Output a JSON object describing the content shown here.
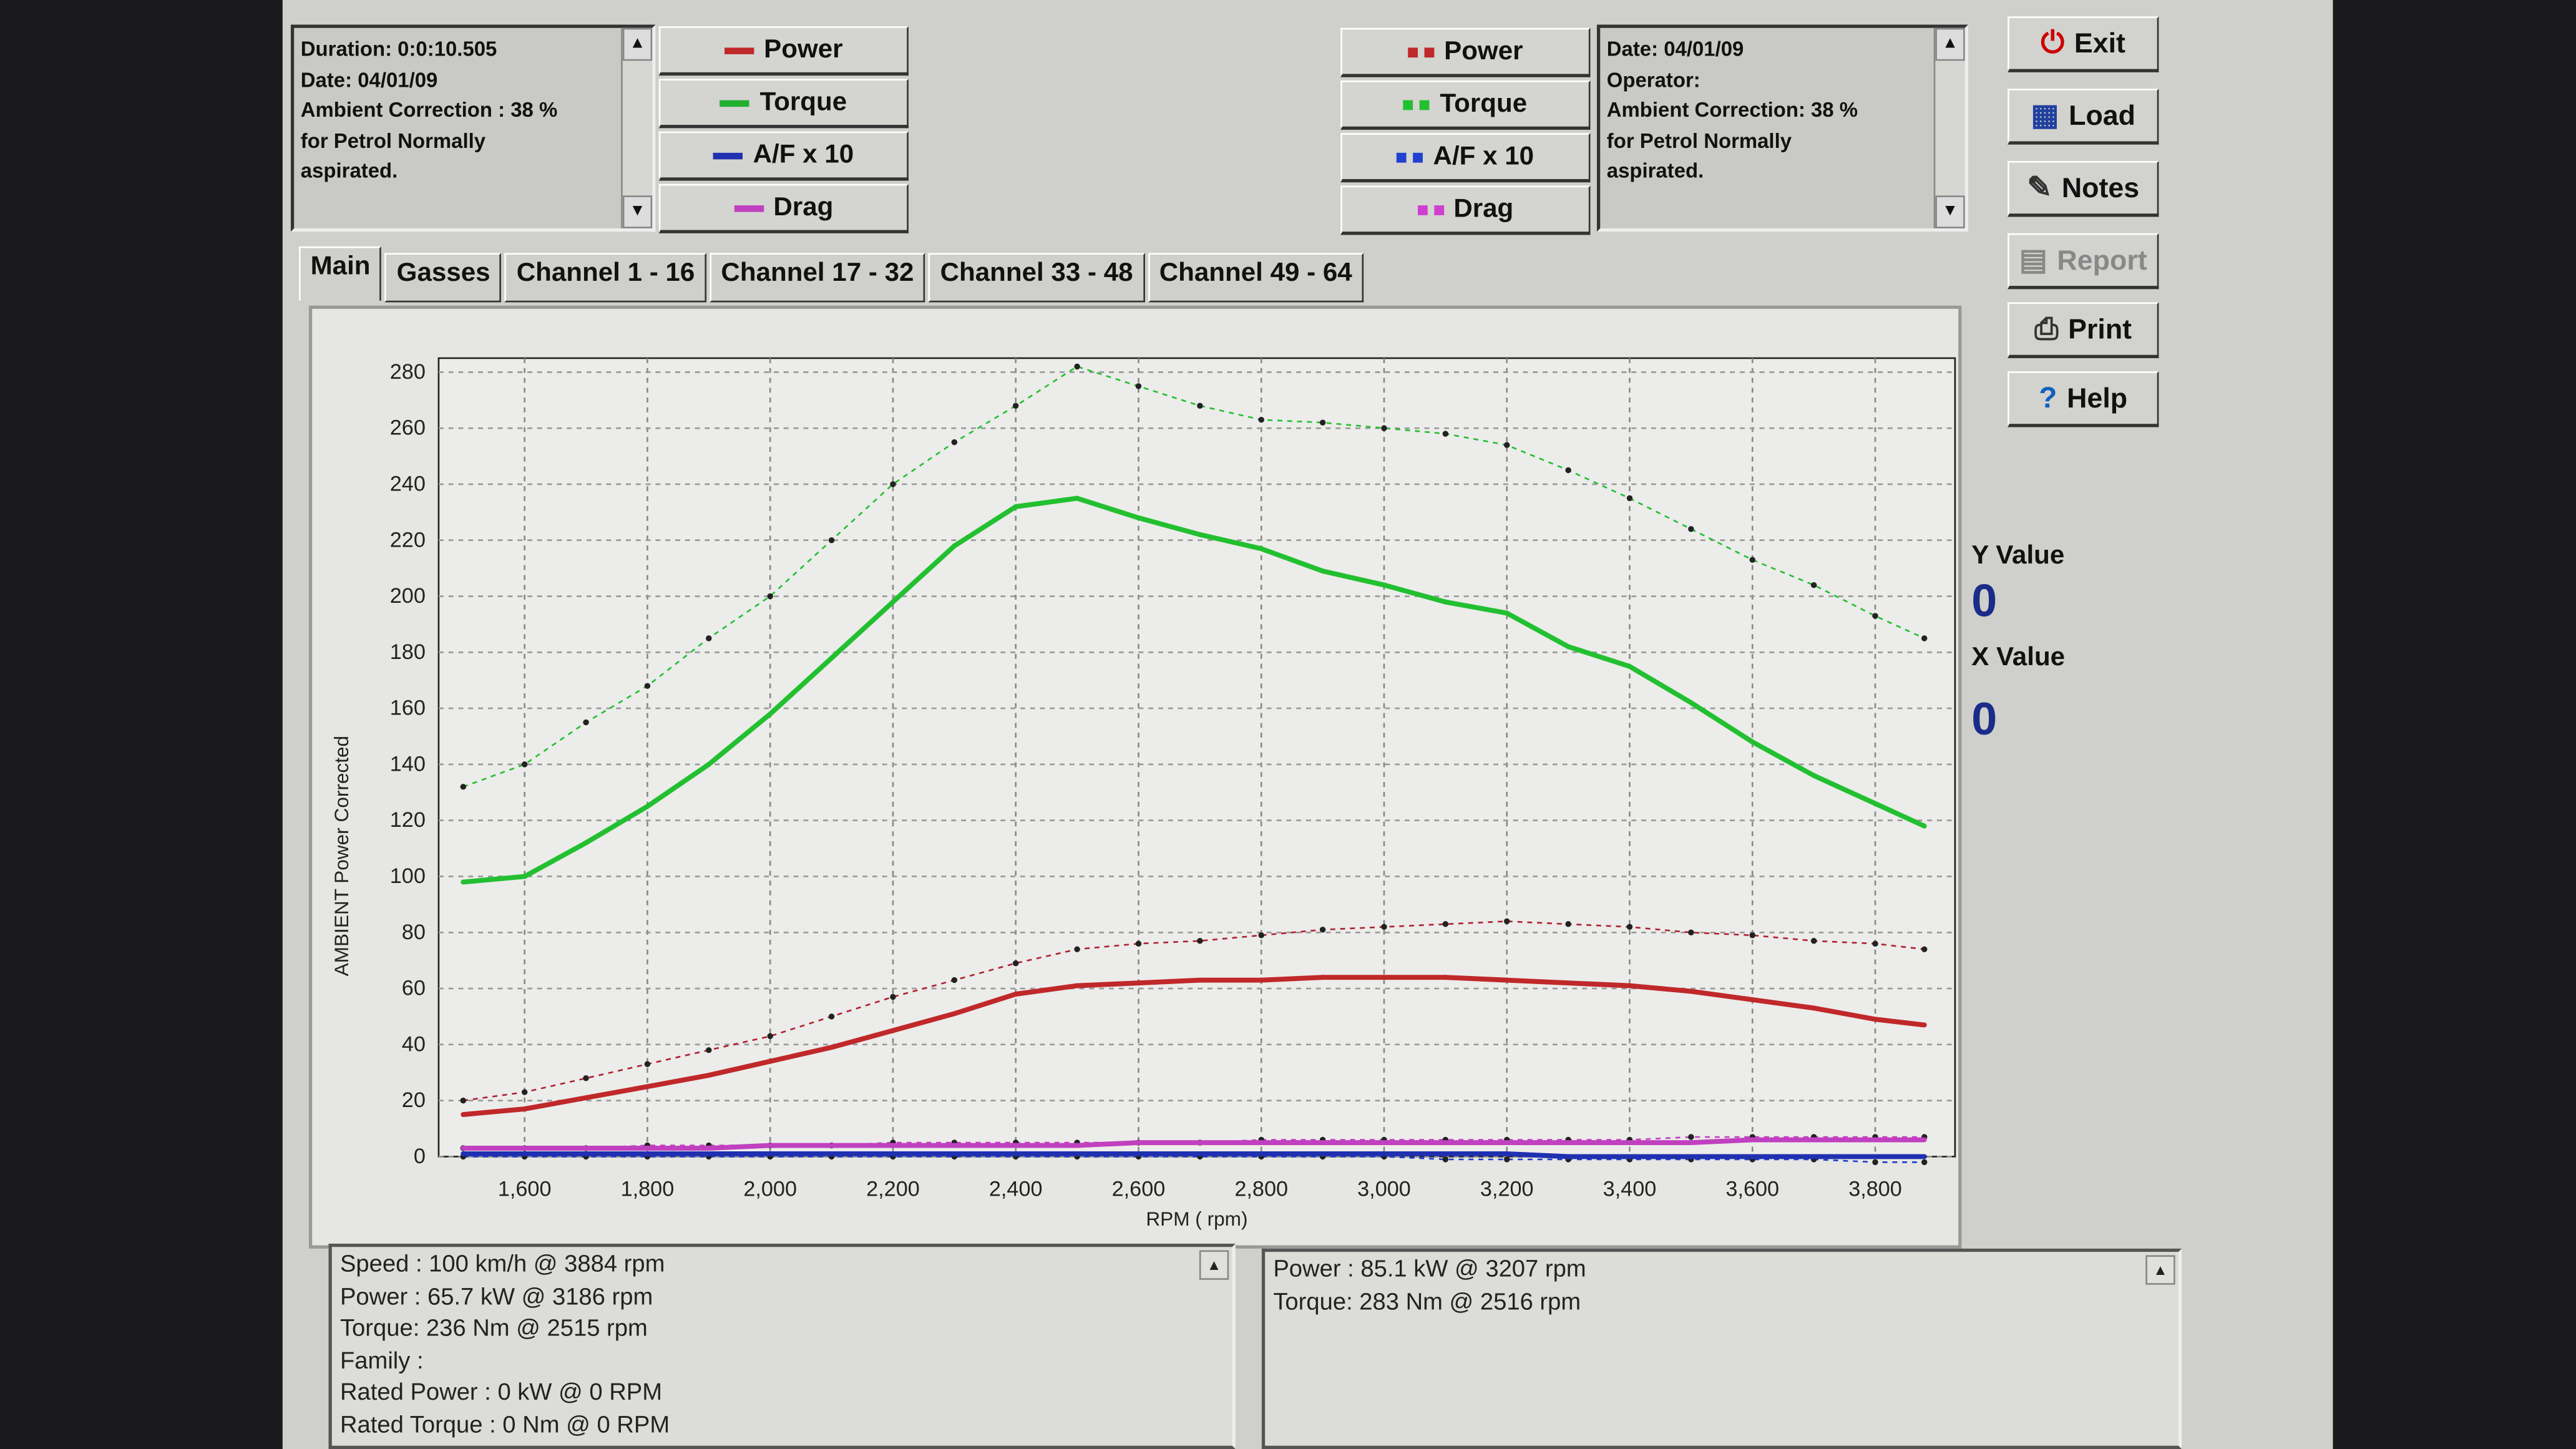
{
  "left_info": {
    "lines": [
      "Duration: 0:0:10.505",
      "Date: 04/01/09",
      "Ambient Correction : 38 %",
      " for Petrol Normally",
      "aspirated."
    ]
  },
  "right_info": {
    "lines": [
      "Date: 04/01/09",
      "Operator:",
      "Ambient Correction: 38 %",
      " for Petrol Normally",
      "aspirated."
    ]
  },
  "legend_solid": [
    {
      "label": "Power",
      "color": "#c0282a"
    },
    {
      "label": "Torque",
      "color": "#22b030"
    },
    {
      "label": "A/F x 10",
      "color": "#2030b0"
    },
    {
      "label": "Drag",
      "color": "#c040c0"
    }
  ],
  "legend_dotted": [
    {
      "label": "Power",
      "color": "#c0282a"
    },
    {
      "label": "Torque",
      "color": "#22c030"
    },
    {
      "label": "A/F x 10",
      "color": "#2040d0"
    },
    {
      "label": "Drag",
      "color": "#d040d0"
    }
  ],
  "tabs": [
    "Main",
    "Gasses",
    "Channel 1 - 16",
    "Channel 17 - 32",
    "Channel 33 - 48",
    "Channel 49 - 64"
  ],
  "active_tab": "Main",
  "buttons": [
    {
      "label": "Exit",
      "icon": "exit-icon"
    },
    {
      "label": "Load",
      "icon": "load-icon"
    },
    {
      "label": "Notes",
      "icon": "notes-icon"
    },
    {
      "label": "Report",
      "icon": "report-icon",
      "disabled": true
    },
    {
      "label": "Print",
      "icon": "print-icon"
    },
    {
      "label": "Help",
      "icon": "help-icon"
    }
  ],
  "readout": {
    "y_label": "Y Value",
    "y_value": "0",
    "x_label": "X Value",
    "x_value": "0"
  },
  "bottom_left": [
    "Speed : 100 km/h @ 3884 rpm",
    "Power : 65.7 kW @ 3186 rpm",
    "Torque: 236 Nm @ 2515 rpm",
    "Family :",
    "Rated Power : 0 kW @ 0 RPM",
    "Rated Torque : 0 Nm @ 0 RPM"
  ],
  "bottom_right": [
    "Power : 85.1 kW @ 3207 rpm",
    "Torque: 283 Nm @ 2516 rpm"
  ],
  "chart_data": {
    "type": "line",
    "xlabel": "RPM ( rpm)",
    "ylabel": "AMBIENT Power Corrected",
    "xlim": [
      1460,
      3930
    ],
    "ylim": [
      0,
      285
    ],
    "xticks": [
      1600,
      1800,
      2000,
      2200,
      2400,
      2600,
      2800,
      3000,
      3200,
      3400,
      3600,
      3800
    ],
    "xtick_labels": [
      "1,600",
      "1,800",
      "2,000",
      "2,200",
      "2,400",
      "2,600",
      "2,800",
      "3,000",
      "3,200",
      "3,400",
      "3,600",
      "3,800"
    ],
    "yticks": [
      0,
      20,
      40,
      60,
      80,
      100,
      120,
      140,
      160,
      180,
      200,
      220,
      240,
      260,
      280
    ],
    "grid": true,
    "x": [
      1500,
      1600,
      1700,
      1800,
      1900,
      2000,
      2100,
      2200,
      2300,
      2400,
      2500,
      2600,
      2700,
      2800,
      2900,
      3000,
      3100,
      3200,
      3300,
      3400,
      3500,
      3600,
      3700,
      3800,
      3880
    ],
    "series": [
      {
        "name": "Torque",
        "style": "dotted",
        "color": "#22c030",
        "values": [
          132,
          140,
          155,
          168,
          185,
          200,
          220,
          240,
          255,
          268,
          282,
          275,
          268,
          263,
          262,
          260,
          258,
          254,
          245,
          235,
          224,
          213,
          204,
          193,
          185
        ]
      },
      {
        "name": "Torque",
        "style": "solid",
        "color": "#22c030",
        "values": [
          98,
          100,
          112,
          125,
          140,
          158,
          178,
          198,
          218,
          232,
          235,
          228,
          222,
          217,
          209,
          204,
          198,
          194,
          182,
          175,
          162,
          148,
          136,
          126,
          118
        ]
      },
      {
        "name": "Power",
        "style": "dotted",
        "color": "#b02030",
        "values": [
          20,
          23,
          28,
          33,
          38,
          43,
          50,
          57,
          63,
          69,
          74,
          76,
          77,
          79,
          81,
          82,
          83,
          84,
          83,
          82,
          80,
          79,
          77,
          76,
          74
        ]
      },
      {
        "name": "Power",
        "style": "solid",
        "color": "#c0282a",
        "values": [
          15,
          17,
          21,
          25,
          29,
          34,
          39,
          45,
          51,
          58,
          61,
          62,
          63,
          63,
          64,
          64,
          64,
          63,
          62,
          61,
          59,
          56,
          53,
          49,
          47
        ]
      },
      {
        "name": "Drag",
        "style": "dotted",
        "color": "#c040c0",
        "values": [
          3,
          3,
          3,
          4,
          4,
          4,
          4,
          5,
          5,
          5,
          5,
          5,
          5,
          6,
          6,
          6,
          6,
          6,
          6,
          6,
          7,
          7,
          7,
          7,
          7
        ]
      },
      {
        "name": "Drag",
        "style": "solid",
        "color": "#c040c0",
        "values": [
          3,
          3,
          3,
          3,
          3,
          4,
          4,
          4,
          4,
          4,
          4,
          5,
          5,
          5,
          5,
          5,
          5,
          5,
          5,
          5,
          5,
          6,
          6,
          6,
          6
        ]
      },
      {
        "name": "A/F x 10",
        "style": "dotted",
        "color": "#2040d0",
        "values": [
          0,
          0,
          0,
          0,
          0,
          0,
          0,
          0,
          0,
          0,
          0,
          0,
          0,
          0,
          0,
          0,
          -1,
          -1,
          -1,
          -1,
          -1,
          -1,
          -1,
          -2,
          -2
        ]
      },
      {
        "name": "A/F x 10",
        "style": "solid",
        "color": "#2030b0",
        "values": [
          1,
          1,
          1,
          1,
          1,
          1,
          1,
          1,
          1,
          1,
          1,
          1,
          1,
          1,
          1,
          1,
          1,
          1,
          0,
          0,
          0,
          0,
          0,
          0,
          0
        ]
      }
    ]
  }
}
